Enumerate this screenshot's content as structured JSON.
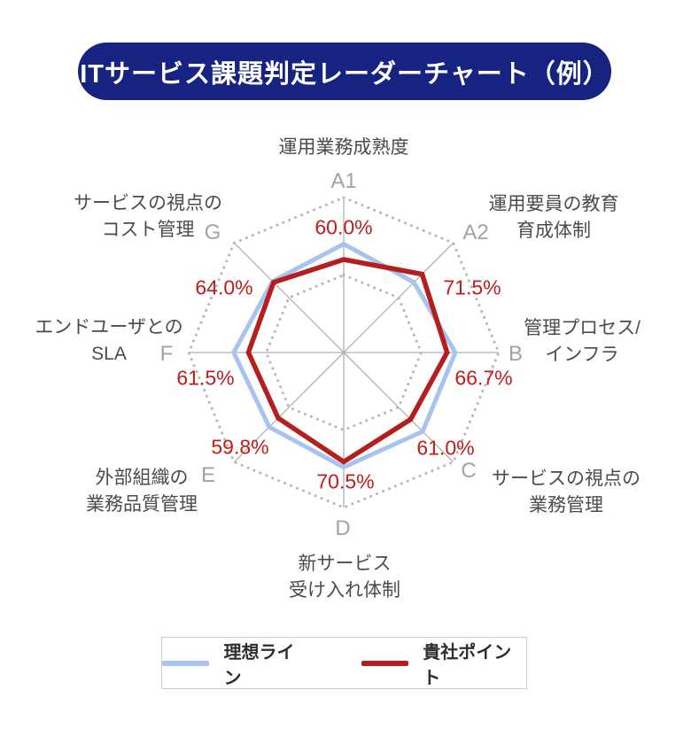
{
  "title": "ITサービス課題判定レーダーチャート（例）",
  "colors": {
    "banner_bg": "#162380",
    "banner_text": "#ffffff",
    "ideal_line": "#a9c3f1",
    "company_line": "#b51e1e",
    "value_text": "#c11c1c",
    "grid_dots": "#b6b6b6",
    "spoke_main": "#c7c7c7",
    "spoke_diag": "#9e9e9e",
    "axis_letter": "#a2a2a2",
    "category_text": "#4b4b4b",
    "legend_border": "#cccccc",
    "legend_text": "#2e2e2e"
  },
  "chart_data": {
    "type": "radar",
    "title": "ITサービス課題判定レーダーチャート（例）",
    "scale": {
      "min": 0,
      "max": 100,
      "unit": "%",
      "rings": [
        50,
        100
      ]
    },
    "axes": [
      {
        "key": "A1",
        "label_lines": [
          "運用業務成熟度"
        ],
        "company_value": 60.0,
        "company_label": "60.0%",
        "ideal_value": 70
      },
      {
        "key": "A2",
        "label_lines": [
          "運用要員の教育",
          "育成体制"
        ],
        "company_value": 71.5,
        "company_label": "71.5%",
        "ideal_value": 64
      },
      {
        "key": "B",
        "label_lines": [
          "管理プロセス/",
          "インフラ"
        ],
        "company_value": 66.7,
        "company_label": "66.7%",
        "ideal_value": 72
      },
      {
        "key": "C",
        "label_lines": [
          "サービスの視点の",
          "業務管理"
        ],
        "company_value": 61.0,
        "company_label": "61.0%",
        "ideal_value": 72
      },
      {
        "key": "D",
        "label_lines": [
          "新サービス",
          "受け入れ体制"
        ],
        "company_value": 70.5,
        "company_label": "70.5%",
        "ideal_value": 74
      },
      {
        "key": "E",
        "label_lines": [
          "外部組織の",
          "業務品質管理"
        ],
        "company_value": 59.8,
        "company_label": "59.8%",
        "ideal_value": 68
      },
      {
        "key": "F",
        "label_lines": [
          "エンドユーザとの",
          "SLA"
        ],
        "company_value": 61.5,
        "company_label": "61.5%",
        "ideal_value": 71
      },
      {
        "key": "G",
        "label_lines": [
          "サービスの視点の",
          "コスト管理"
        ],
        "company_value": 64.0,
        "company_label": "64.0%",
        "ideal_value": 65
      }
    ],
    "series": [
      {
        "name": "理想ライン",
        "color": "#a9c3f1",
        "values_key": "ideal_value"
      },
      {
        "name": "貴社ポイント",
        "color": "#b51e1e",
        "values_key": "company_value"
      }
    ],
    "legend_position": "bottom"
  },
  "legend": {
    "items": [
      {
        "label": "理想ライン",
        "color": "#a9c3f1"
      },
      {
        "label": "貴社ポイント",
        "color": "#b51e1e"
      }
    ]
  }
}
